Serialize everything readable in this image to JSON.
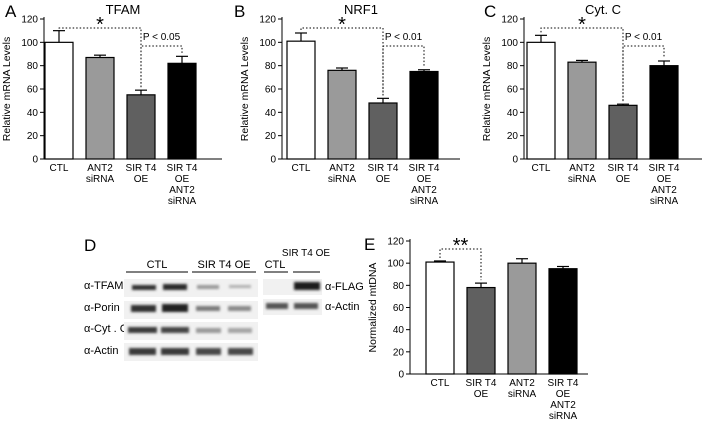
{
  "panel_labels": [
    "A",
    "B",
    "C",
    "D",
    "E"
  ],
  "chart_data": [
    {
      "panel": "A",
      "type": "bar",
      "title": "TFAM",
      "ylabel": "Relative mRNA Levels",
      "ylim": [
        0,
        120
      ],
      "yticks": [
        0,
        20,
        40,
        60,
        80,
        100,
        120
      ],
      "categories": [
        [
          "CTL"
        ],
        [
          "ANT2",
          "siRNA"
        ],
        [
          "SIR T4",
          "OE"
        ],
        [
          "SIR T4",
          "OE",
          "ANT2",
          "siRNA"
        ]
      ],
      "values": [
        100,
        87,
        55,
        82
      ],
      "errors": [
        10,
        2,
        4,
        6
      ],
      "colors": [
        "#ffffff",
        "#9a9a9a",
        "#606060",
        "#000000"
      ],
      "annotations": [
        {
          "from": 0,
          "to": 2,
          "label": "*"
        },
        {
          "from": 2,
          "to": 3,
          "label": "P < 0.05"
        }
      ]
    },
    {
      "panel": "B",
      "type": "bar",
      "title": "NRF1",
      "ylabel": "Relative mRNA Levels",
      "ylim": [
        0,
        120
      ],
      "yticks": [
        0,
        20,
        40,
        60,
        80,
        100,
        120
      ],
      "categories": [
        [
          "CTL"
        ],
        [
          "ANT2",
          "siRNA"
        ],
        [
          "SIR T4",
          "OE"
        ],
        [
          "SIR T4",
          "OE",
          "ANT2",
          "siRNA"
        ]
      ],
      "values": [
        101,
        76,
        48,
        75
      ],
      "errors": [
        7,
        2,
        4,
        1.5
      ],
      "colors": [
        "#ffffff",
        "#9a9a9a",
        "#606060",
        "#000000"
      ],
      "annotations": [
        {
          "from": 0,
          "to": 2,
          "label": "*"
        },
        {
          "from": 2,
          "to": 3,
          "label": "P < 0.01"
        }
      ]
    },
    {
      "panel": "C",
      "type": "bar",
      "title": "Cyt. C",
      "ylabel": "Relative mRNA Levels",
      "ylim": [
        0,
        120
      ],
      "yticks": [
        0,
        20,
        40,
        60,
        80,
        100,
        120
      ],
      "categories": [
        [
          "CTL"
        ],
        [
          "ANT2",
          "siRNA"
        ],
        [
          "SIR T4",
          "OE"
        ],
        [
          "SIR T4",
          "OE",
          "ANT2",
          "siRNA"
        ]
      ],
      "values": [
        100,
        83,
        46,
        80
      ],
      "errors": [
        6,
        1.5,
        1,
        4
      ],
      "colors": [
        "#ffffff",
        "#9a9a9a",
        "#606060",
        "#000000"
      ],
      "annotations": [
        {
          "from": 0,
          "to": 2,
          "label": "*"
        },
        {
          "from": 2,
          "to": 3,
          "label": "P < 0.01"
        }
      ]
    },
    {
      "panel": "E",
      "type": "bar",
      "title": "",
      "ylabel": "Normalized mtDNA",
      "ylim": [
        0,
        120
      ],
      "yticks": [
        0,
        20,
        40,
        60,
        80,
        100,
        120
      ],
      "categories": [
        [
          "CTL"
        ],
        [
          "SIR T4",
          "OE"
        ],
        [
          "ANT2",
          "siRNA"
        ],
        [
          "SIR T4",
          "OE",
          "ANT2",
          "siRNA"
        ]
      ],
      "values": [
        101,
        78,
        100,
        95
      ],
      "errors": [
        1,
        4,
        4,
        2
      ],
      "colors": [
        "#ffffff",
        "#606060",
        "#9a9a9a",
        "#000000"
      ],
      "annotations": [
        {
          "from": 0,
          "to": 1,
          "label": "**"
        }
      ]
    }
  ],
  "western_blot": {
    "panel": "D",
    "left": {
      "groups": [
        "CTL",
        "SIR T4 OE"
      ],
      "rows": [
        "α-TFAM",
        "α-Porin",
        "α-Cyt . C",
        "α-Actin"
      ]
    },
    "right": {
      "groups": [
        "CTL",
        "SIR T4 OE"
      ],
      "rows": [
        "α-FLAG",
        "α-Actin"
      ]
    }
  }
}
